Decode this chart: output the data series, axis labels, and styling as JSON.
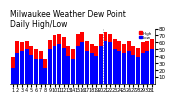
{
  "title": "Milwaukee Weather Dew Point",
  "subtitle": "Daily High/Low",
  "background_color": "#ffffff",
  "high_color": "#ff0000",
  "low_color": "#0000ff",
  "ylim": [
    0,
    80
  ],
  "yticks": [
    10,
    20,
    30,
    40,
    50,
    60,
    70,
    80
  ],
  "ytick_labels": [
    "10",
    "20",
    "30",
    "40",
    "50",
    "60",
    "70",
    "80"
  ],
  "legend_high": "High",
  "legend_low": "Low",
  "high_vals": [
    38,
    62,
    60,
    62,
    55,
    50,
    48,
    35,
    63,
    70,
    72,
    68,
    55,
    50,
    72,
    75,
    62,
    58,
    55,
    72,
    75,
    72,
    65,
    62,
    58,
    62,
    55,
    52,
    60,
    62,
    65
  ],
  "low_vals": [
    22,
    45,
    48,
    50,
    42,
    35,
    35,
    22,
    50,
    55,
    58,
    52,
    40,
    35,
    55,
    60,
    48,
    45,
    40,
    55,
    62,
    60,
    50,
    48,
    45,
    48,
    42,
    38,
    45,
    48,
    50
  ],
  "xlabels": [
    "2",
    "2",
    "1",
    "1",
    "3",
    "3",
    "5",
    "5",
    "9",
    "0",
    "5",
    "5",
    "1",
    "1",
    "1",
    "1",
    "1",
    "1",
    "1",
    "1",
    "1",
    "1",
    "1",
    "1",
    "1",
    "1",
    "1",
    "1",
    "1",
    "1",
    "1"
  ],
  "title_fontsize": 5.5,
  "tick_fontsize": 4,
  "vline_pos": 19.5,
  "bar_width": 0.85
}
